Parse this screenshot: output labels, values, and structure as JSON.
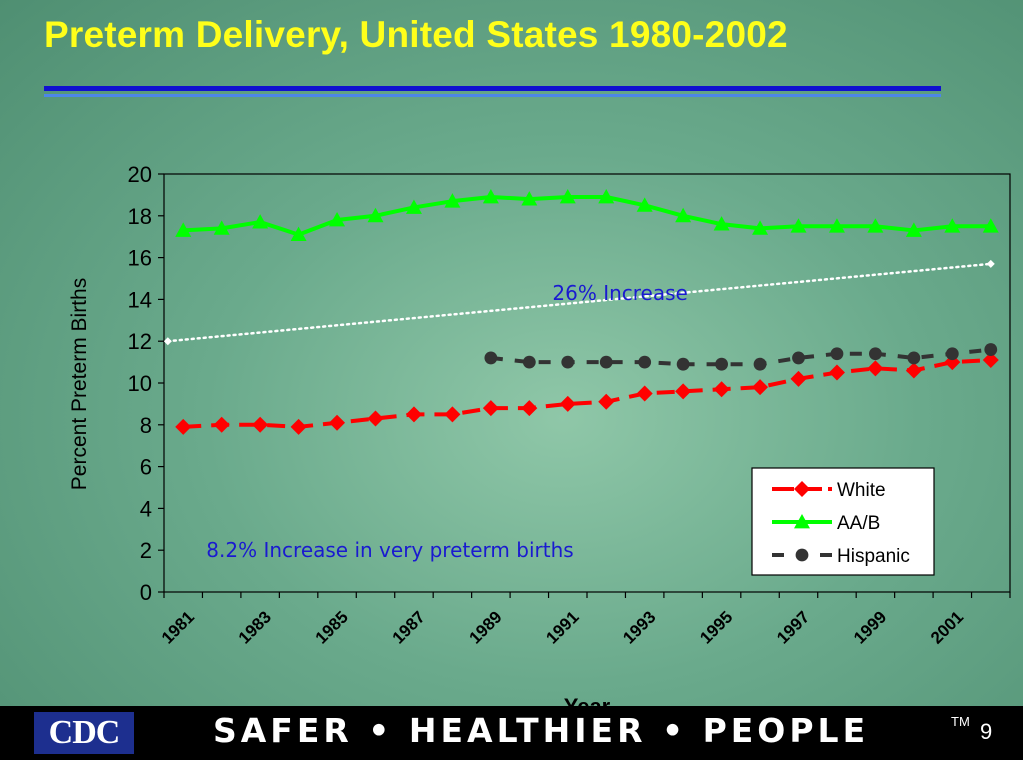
{
  "slide": {
    "title": "Preterm Delivery, United States 1980-2002",
    "footer_logo": "CDC",
    "footer_tagline": "SAFER • HEALTHIER • PEOPLE",
    "trademark": "TM",
    "page_number": "9"
  },
  "colors": {
    "title": "#ffff1a",
    "white_series": "#ff0000",
    "aab_series": "#00ff00",
    "hispanic_series": "#333333",
    "annotation": "#1a1ad0"
  },
  "chart_data": {
    "type": "line",
    "ylabel": "Percent Preterm Births",
    "xlabel": "Year",
    "ylim": [
      0,
      20
    ],
    "yticks": [
      0,
      2,
      4,
      6,
      8,
      10,
      12,
      14,
      16,
      18,
      20
    ],
    "x": [
      1981,
      1982,
      1983,
      1984,
      1985,
      1986,
      1987,
      1988,
      1989,
      1990,
      1991,
      1992,
      1993,
      1994,
      1995,
      1996,
      1997,
      1998,
      1999,
      2000,
      2001,
      2002
    ],
    "xtick_labels": [
      "1981",
      "1983",
      "1985",
      "1987",
      "1989",
      "1991",
      "1993",
      "1995",
      "1997",
      "1999",
      "2001"
    ],
    "legend_position": "bottom-right",
    "series": [
      {
        "name": "White",
        "marker": "diamond",
        "style": "dashed",
        "values": [
          7.9,
          8.0,
          8.0,
          7.9,
          8.1,
          8.3,
          8.5,
          8.5,
          8.8,
          8.8,
          9.0,
          9.1,
          9.5,
          9.6,
          9.7,
          9.8,
          10.2,
          10.5,
          10.7,
          10.6,
          11.0,
          11.1
        ]
      },
      {
        "name": "AA/B",
        "marker": "triangle",
        "style": "solid",
        "values": [
          17.3,
          17.4,
          17.7,
          17.1,
          17.8,
          18.0,
          18.4,
          18.7,
          18.9,
          18.8,
          18.9,
          18.9,
          18.5,
          18.0,
          17.6,
          17.4,
          17.5,
          17.5,
          17.5,
          17.3,
          17.5,
          17.5
        ]
      },
      {
        "name": "Hispanic",
        "marker": "circle",
        "style": "dashed",
        "values": [
          null,
          null,
          null,
          null,
          null,
          null,
          null,
          null,
          11.2,
          11.0,
          11.0,
          11.0,
          11.0,
          10.9,
          10.9,
          10.9,
          11.2,
          11.4,
          11.4,
          11.2,
          11.4,
          11.6
        ]
      }
    ],
    "trend": {
      "style": "dotted",
      "from": [
        1980.6,
        12.0
      ],
      "to": [
        2002.0,
        15.7
      ]
    },
    "annotations": [
      {
        "text": "26% Increase",
        "x": 1990.6,
        "y": 14.3
      },
      {
        "text": "8.2% Increase in very preterm births",
        "x": 1981.6,
        "y": 2.0
      }
    ]
  }
}
